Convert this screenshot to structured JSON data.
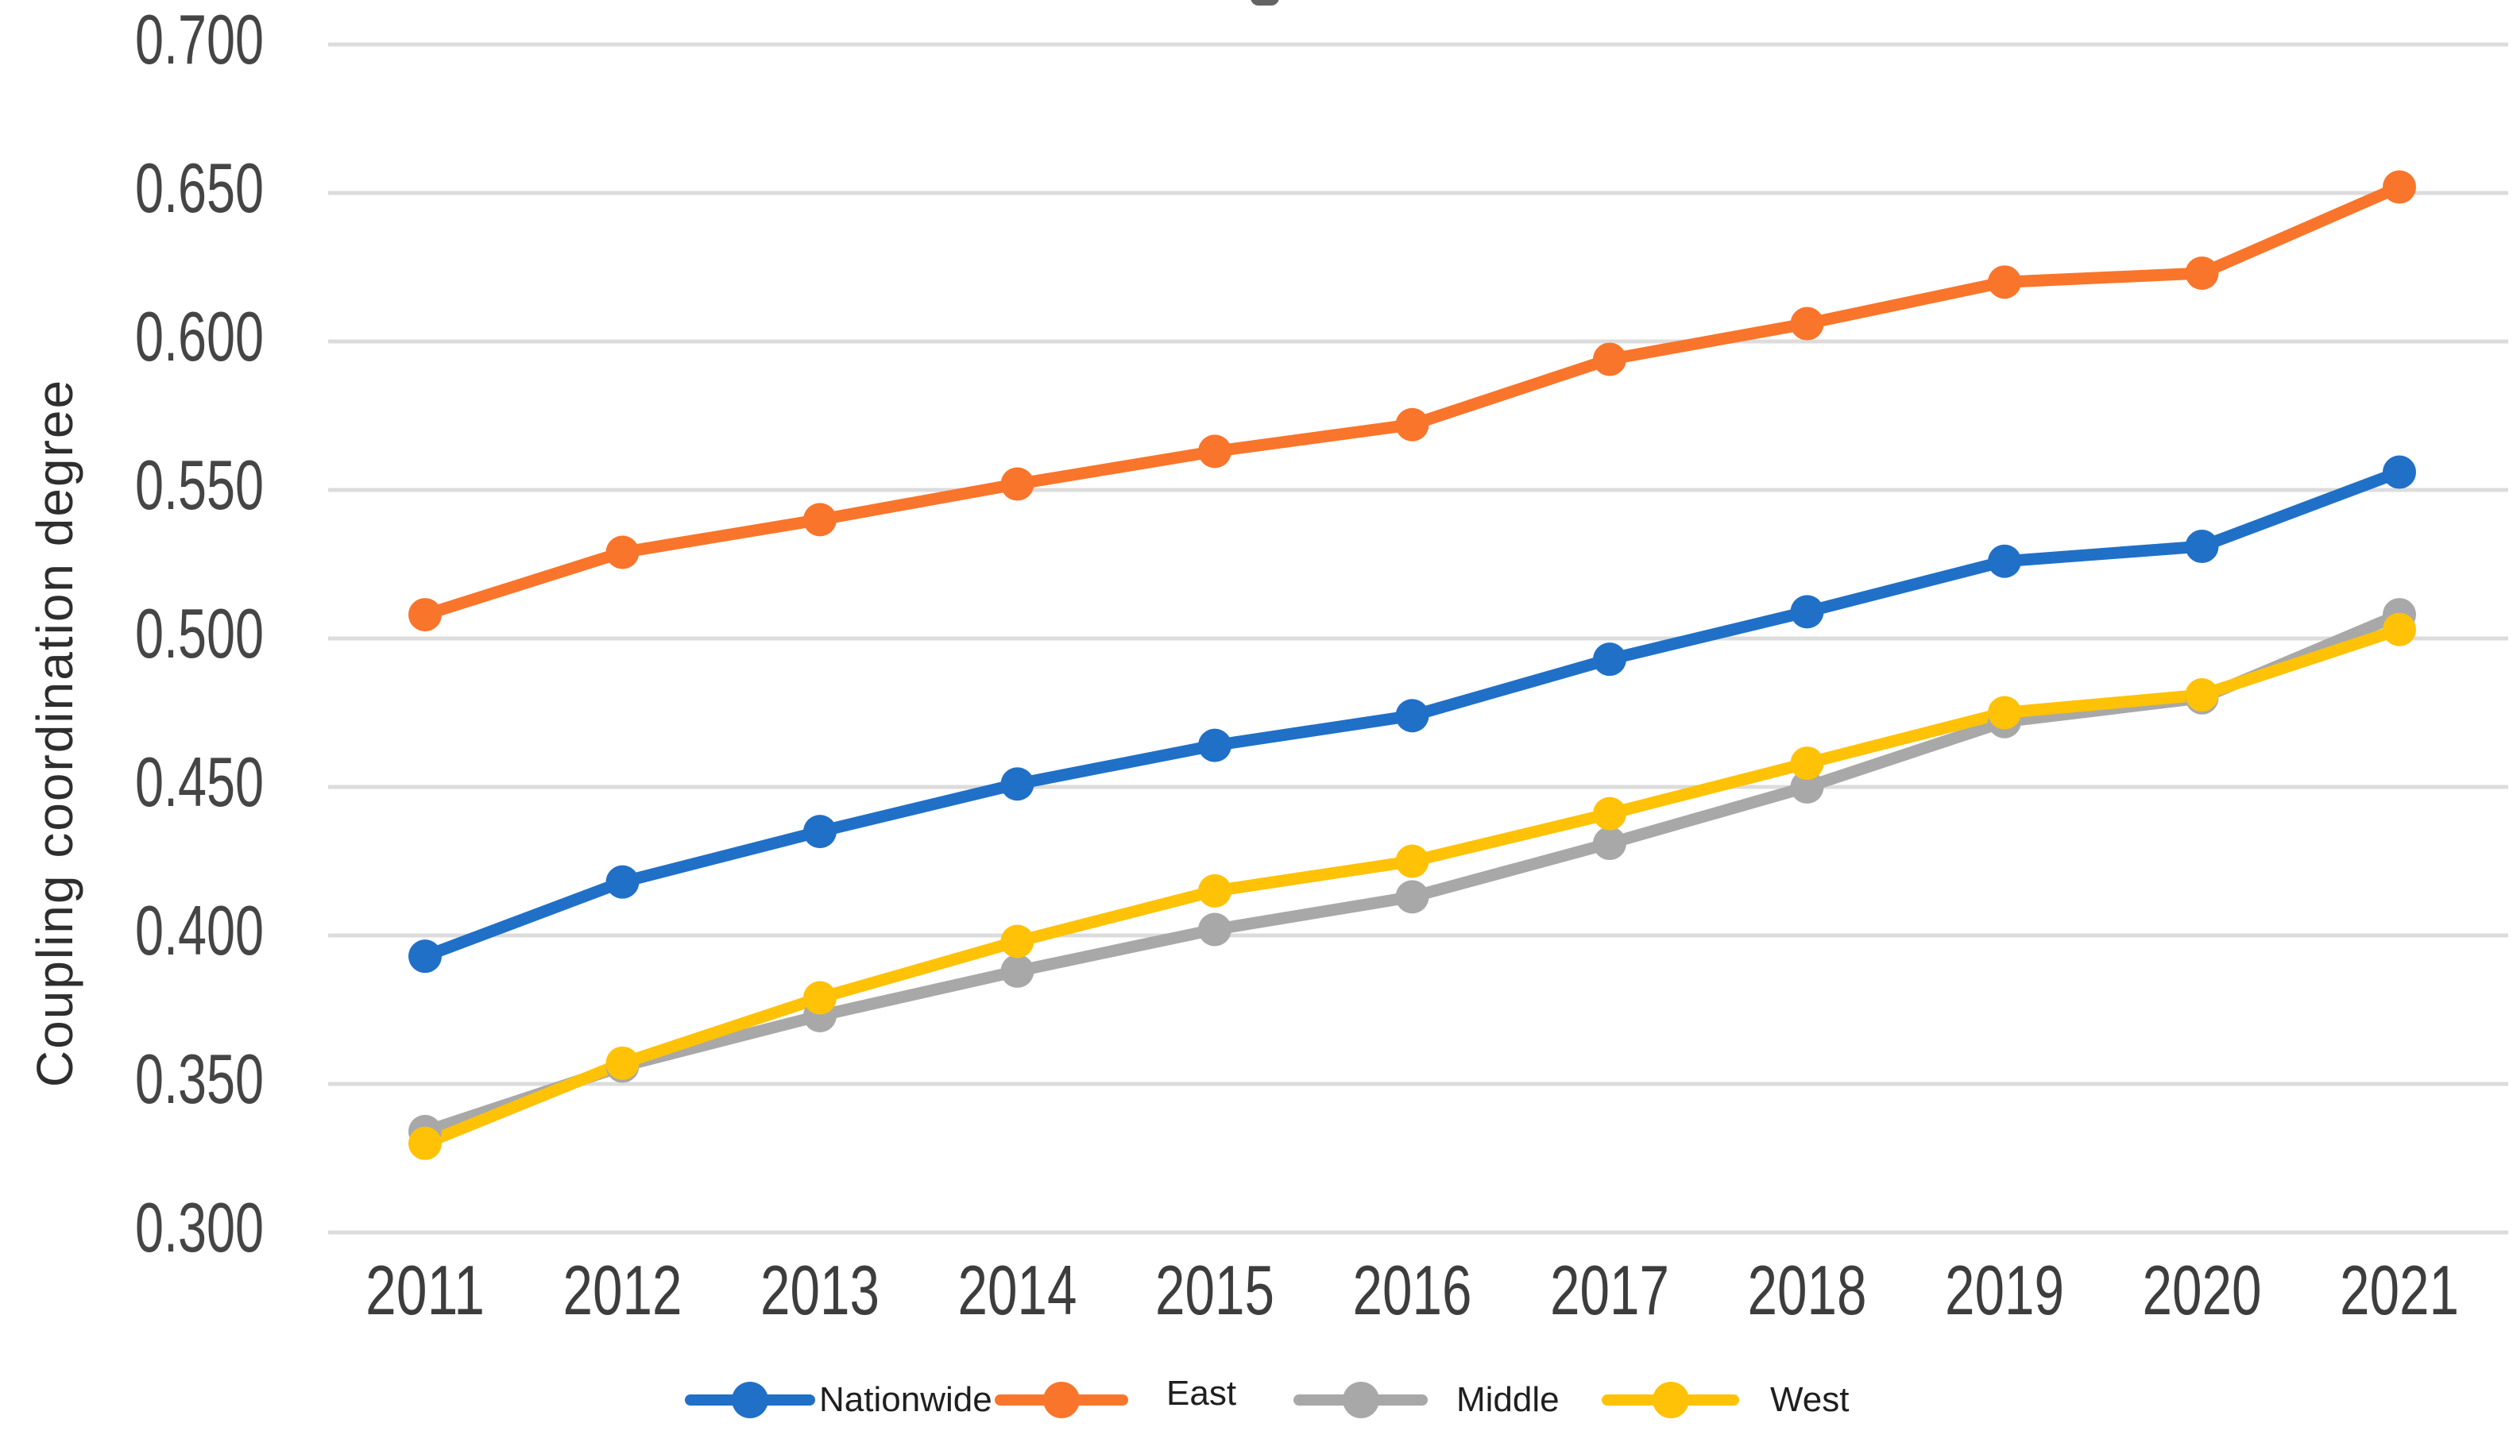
{
  "page": {
    "background": "#ffffff"
  },
  "chart_data": {
    "type": "line",
    "title": "",
    "xlabel": "",
    "ylabel": "Coupling coordination degree",
    "categories": [
      "2011",
      "2012",
      "2013",
      "2014",
      "2015",
      "2016",
      "2017",
      "2018",
      "2019",
      "2020",
      "2021"
    ],
    "series": [
      {
        "name": "Nationwide",
        "color": "#2070C7",
        "values": [
          0.393,
          0.418,
          0.435,
          0.451,
          0.464,
          0.474,
          0.493,
          0.509,
          0.526,
          0.531,
          0.556
        ]
      },
      {
        "name": "East",
        "color": "#F9752B",
        "values": [
          0.508,
          0.529,
          0.54,
          0.552,
          0.563,
          0.572,
          0.594,
          0.606,
          0.62,
          0.623,
          0.652
        ]
      },
      {
        "name": "Middle",
        "color": "#A8A8A8",
        "values": [
          0.334,
          0.356,
          0.373,
          0.388,
          0.402,
          0.413,
          0.431,
          0.45,
          0.472,
          0.48,
          0.508
        ]
      },
      {
        "name": "West",
        "color": "#FFC207",
        "values": [
          0.33,
          0.357,
          0.379,
          0.398,
          0.415,
          0.425,
          0.441,
          0.458,
          0.475,
          0.481,
          0.503
        ]
      }
    ],
    "ylim": [
      0.3,
      0.7
    ],
    "ytick_step": 0.05,
    "ytick_labels": [
      "0.700",
      "0.650",
      "0.600",
      "0.550",
      "0.500",
      "0.450",
      "0.400",
      "0.350",
      "0.300"
    ],
    "grid": "horizontal gridlines only",
    "gridline_color": "#DCDCDC",
    "tick_text_color": "#454545",
    "legend_position": "bottom",
    "legend_items": [
      "Nationwide",
      "East",
      "Middle",
      "West"
    ],
    "draw_order": [
      "Middle",
      "West",
      "Nationwide",
      "East"
    ]
  }
}
